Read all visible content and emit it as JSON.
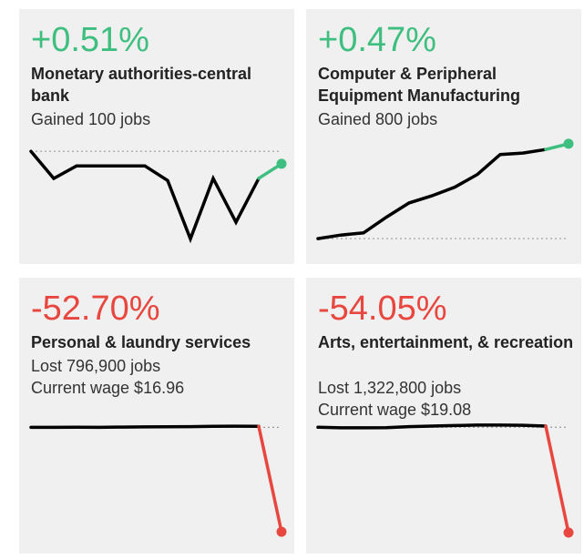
{
  "colors": {
    "positive": "#3fbf7f",
    "negative": "#e8473f",
    "line": "#000000",
    "baseline": "#9a9a9a",
    "card_bg": "#f0f0f0"
  },
  "cards": [
    {
      "change": "+0.51%",
      "title": "Monetary authorities-central bank",
      "line1": "Gained 100 jobs",
      "line2": "",
      "trend": "positive"
    },
    {
      "change": "+0.47%",
      "title": "Computer & Peripheral Equipment Manufacturing",
      "line1": "Gained 800 jobs",
      "line2": "",
      "trend": "positive"
    },
    {
      "change": "-52.70%",
      "title": "Personal & laundry services",
      "line1": "Lost 796,900 jobs",
      "line2": "Current wage $16.96",
      "trend": "negative"
    },
    {
      "change": "-54.05%",
      "title": "Arts, entertainment, & recreation",
      "line1": "Lost 1,322,800 jobs",
      "line2": "Current wage $19.08",
      "trend": "negative"
    }
  ],
  "chart_data": [
    {
      "type": "line",
      "title": "Monetary authorities-central bank",
      "x": [
        1,
        2,
        3,
        4,
        5,
        6,
        7,
        8,
        9,
        10,
        11,
        12
      ],
      "series": [
        {
          "values": [
            0.0,
            -1.3,
            -0.7,
            -0.7,
            -0.7,
            -0.7,
            -1.4,
            -4.2,
            -1.3,
            -3.4,
            -1.3,
            -0.6
          ]
        }
      ],
      "baseline": 0,
      "highlight_last_segment": true,
      "ylim": [
        -4.4,
        0.4
      ],
      "grid": false
    },
    {
      "type": "line",
      "title": "Computer & Peripheral Equipment Manufacturing",
      "x": [
        1,
        2,
        3,
        4,
        5,
        6,
        7,
        8,
        9,
        10,
        11,
        12
      ],
      "series": [
        {
          "values": [
            0.0,
            0.05,
            0.08,
            0.3,
            0.5,
            0.6,
            0.72,
            0.9,
            1.18,
            1.2,
            1.25,
            1.33
          ]
        }
      ],
      "baseline": 0,
      "highlight_last_segment": true,
      "ylim": [
        -0.05,
        1.38
      ],
      "grid": false
    },
    {
      "type": "line",
      "title": "Personal & laundry services",
      "x": [
        1,
        2,
        3,
        4,
        5,
        6,
        7,
        8,
        9,
        10,
        11,
        12
      ],
      "series": [
        {
          "values": [
            0.0,
            0.0,
            0.05,
            0.0,
            0.1,
            0.2,
            0.25,
            0.35,
            0.5,
            0.6,
            0.5,
            -52.7
          ]
        }
      ],
      "baseline": 0,
      "highlight_last_segment": true,
      "ylim": [
        -54,
        2
      ],
      "grid": false
    },
    {
      "type": "line",
      "title": "Arts, entertainment, & recreation",
      "x": [
        1,
        2,
        3,
        4,
        5,
        6,
        7,
        8,
        9,
        10,
        11,
        12
      ],
      "series": [
        {
          "values": [
            0.0,
            -0.3,
            -0.3,
            -0.25,
            0.3,
            0.6,
            0.9,
            1.1,
            1.1,
            1.0,
            0.6,
            -54.05
          ]
        }
      ],
      "baseline": 0,
      "highlight_last_segment": true,
      "ylim": [
        -55,
        2
      ],
      "grid": false
    }
  ]
}
